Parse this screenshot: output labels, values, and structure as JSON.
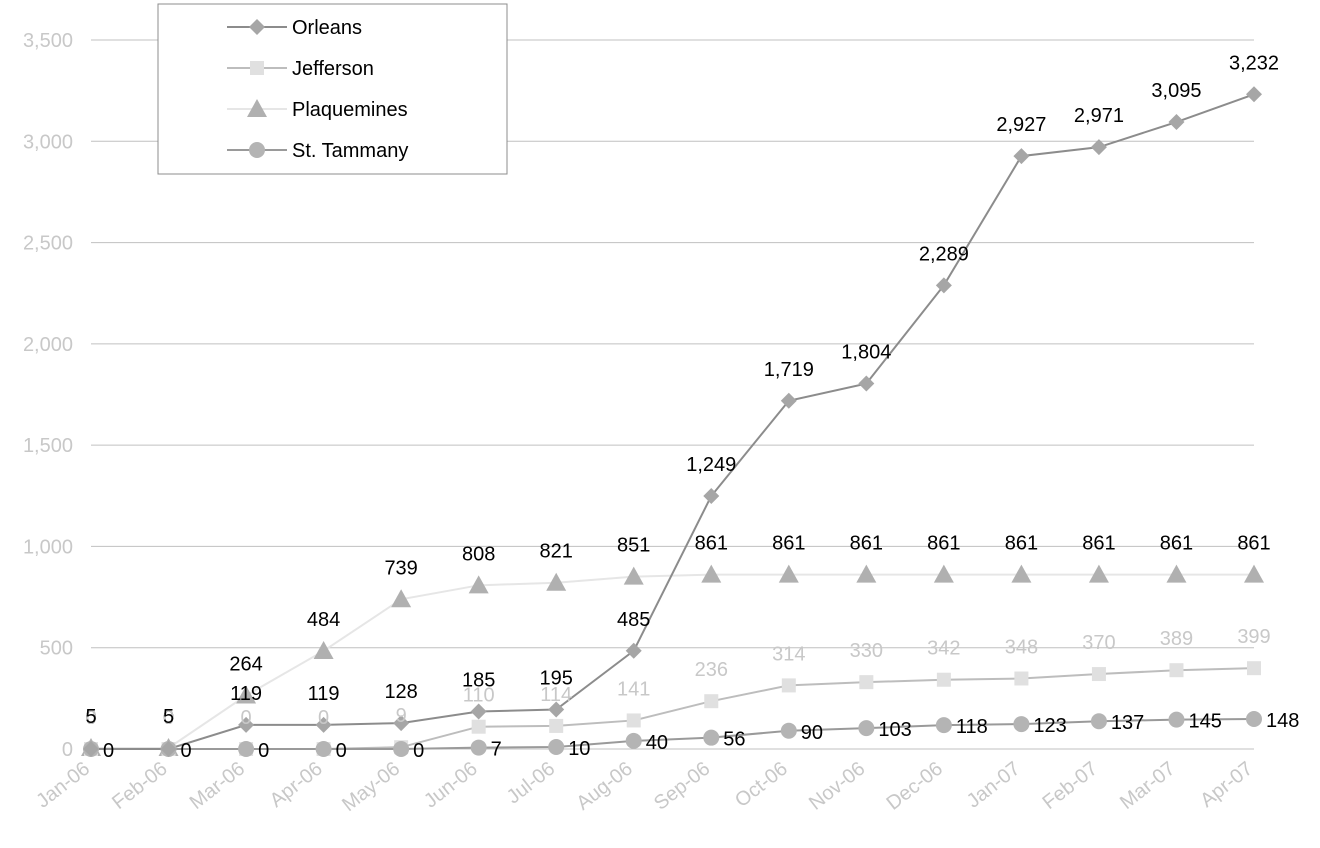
{
  "chart_data": {
    "type": "line",
    "title": "",
    "xlabel": "",
    "ylabel": "",
    "ylim": [
      0,
      3500
    ],
    "ytick_step": 500,
    "yticks": [
      "0",
      "500",
      "1,000",
      "1,500",
      "2,000",
      "2,500",
      "3,000",
      "3,500"
    ],
    "grid": "horizontal",
    "legend_position": "top-left",
    "categories": [
      "Jan-06",
      "Feb-06",
      "Mar-06",
      "Apr-06",
      "May-06",
      "Jun-06",
      "Jul-06",
      "Aug-06",
      "Sep-06",
      "Oct-06",
      "Nov-06",
      "Dec-06",
      "Jan-07",
      "Feb-07",
      "Mar-07",
      "Apr-07"
    ],
    "series": [
      {
        "name": "Orleans",
        "marker": "diamond",
        "color": "#a6a6a6",
        "line_color": "#8c8c8c",
        "label_color": "#000000",
        "values": [
          0,
          0,
          119,
          119,
          128,
          185,
          195,
          485,
          1249,
          1719,
          1804,
          2289,
          2927,
          2971,
          3095,
          3232
        ],
        "labels": [
          "0",
          "0",
          "119",
          "119",
          "128",
          "185",
          "195",
          "485",
          "1,249",
          "1,719",
          "1,804",
          "2,289",
          "2,927",
          "2,971",
          "3,095",
          "3,232"
        ]
      },
      {
        "name": "Jefferson",
        "marker": "square",
        "color": "#e0e0e0",
        "line_color": "#bdbdbd",
        "label_color": "#c8c8c8",
        "values": [
          0,
          0,
          0,
          0,
          9,
          110,
          114,
          141,
          236,
          314,
          330,
          342,
          348,
          370,
          389,
          399
        ],
        "labels": [
          "0",
          "0",
          "0",
          "0",
          "9",
          "110",
          "114",
          "141",
          "236",
          "314",
          "330",
          "342",
          "348",
          "370",
          "389",
          "399"
        ]
      },
      {
        "name": "Plaquemines",
        "marker": "triangle",
        "color": "#b0b0b0",
        "line_color": "#e6e6e6",
        "label_color": "#000000",
        "values": [
          5,
          5,
          264,
          484,
          739,
          808,
          821,
          851,
          861,
          861,
          861,
          861,
          861,
          861,
          861,
          861
        ],
        "labels": [
          "5",
          "5",
          "264",
          "484",
          "739",
          "808",
          "821",
          "851",
          "861",
          "861",
          "861",
          "861",
          "861",
          "861",
          "861",
          "861"
        ]
      },
      {
        "name": "St. Tammany",
        "marker": "circle",
        "color": "#b4b4b4",
        "line_color": "#9a9a9a",
        "label_color": "#000000",
        "values": [
          0,
          0,
          0,
          0,
          0,
          7,
          10,
          40,
          56,
          90,
          103,
          118,
          123,
          137,
          145,
          148
        ],
        "labels": [
          "0",
          "0",
          "0",
          "0",
          "0",
          "7",
          "10",
          "40",
          "56",
          "90",
          "103",
          "118",
          "123",
          "137",
          "145",
          "148"
        ]
      }
    ]
  }
}
